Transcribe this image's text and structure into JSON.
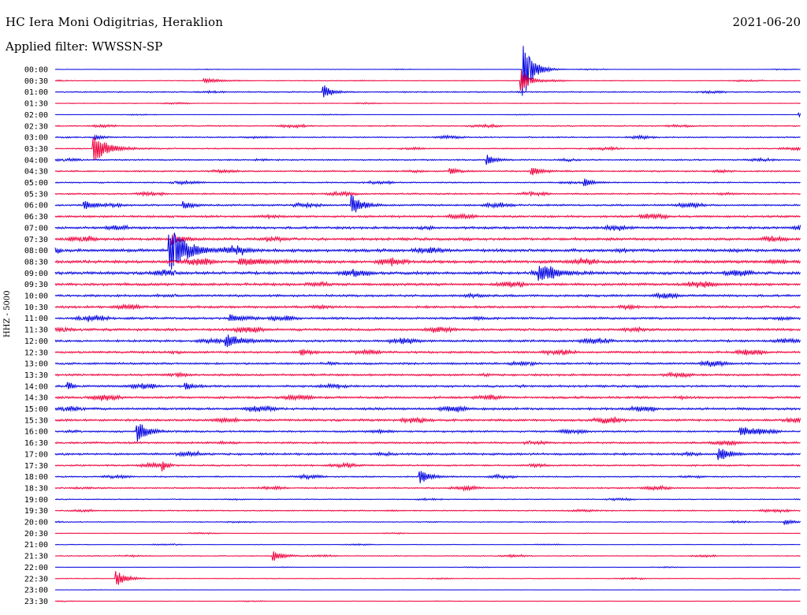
{
  "header": {
    "station": "HC Iera Moni Odigitrias, Heraklion",
    "date": "2021-06-20",
    "filter": "Applied filter: WWSSN-SP"
  },
  "chart_data": {
    "type": "line",
    "ylabel": "HHZ - 5000",
    "colors": {
      "even": "#0000e0",
      "odd": "#f0003c"
    },
    "rows": [
      "00:00",
      "00:30",
      "01:00",
      "01:30",
      "02:00",
      "02:30",
      "03:00",
      "03:30",
      "04:00",
      "04:30",
      "05:00",
      "05:30",
      "06:00",
      "06:30",
      "07:00",
      "07:30",
      "08:00",
      "08:30",
      "09:00",
      "09:30",
      "10:00",
      "10:30",
      "11:00",
      "11:30",
      "12:00",
      "12:30",
      "13:00",
      "13:30",
      "14:00",
      "14:30",
      "15:00",
      "15:30",
      "16:00",
      "16:30",
      "17:00",
      "17:30",
      "18:00",
      "18:30",
      "19:00",
      "19:30",
      "20:00",
      "20:30",
      "21:00",
      "21:30",
      "22:00",
      "22:30",
      "23:00",
      "23:30"
    ],
    "noise": [
      0.3,
      0.5,
      0.8,
      0.5,
      0.3,
      0.8,
      0.8,
      0.8,
      0.9,
      1.0,
      0.9,
      1.0,
      1.2,
      1.4,
      1.6,
      1.7,
      2.0,
      2.0,
      1.9,
      1.7,
      1.5,
      1.5,
      1.5,
      1.6,
      1.5,
      1.4,
      1.4,
      1.4,
      1.4,
      1.5,
      1.6,
      1.5,
      1.2,
      1.3,
      1.4,
      1.1,
      0.9,
      1.0,
      0.6,
      0.8,
      0.6,
      0.4,
      0.4,
      0.6,
      0.3,
      0.5,
      0.2,
      0.3
    ],
    "events": [
      {
        "row": 0,
        "x": 0.628,
        "amp": 38,
        "decay": 0.012
      },
      {
        "row": 1,
        "x": 0.626,
        "amp": 14,
        "decay": 0.01
      },
      {
        "row": 2,
        "x": 0.36,
        "amp": 9,
        "decay": 0.01
      },
      {
        "row": 1,
        "x": 0.2,
        "amp": 3,
        "decay": 0.02
      },
      {
        "row": 7,
        "x": 0.052,
        "amp": 17,
        "decay": 0.018
      },
      {
        "row": 6,
        "x": 0.054,
        "amp": 3,
        "decay": 0.01
      },
      {
        "row": 8,
        "x": 0.58,
        "amp": 6,
        "decay": 0.01
      },
      {
        "row": 9,
        "x": 0.64,
        "amp": 5,
        "decay": 0.012
      },
      {
        "row": 9,
        "x": 0.53,
        "amp": 4,
        "decay": 0.01
      },
      {
        "row": 10,
        "x": 0.71,
        "amp": 5,
        "decay": 0.01
      },
      {
        "row": 12,
        "x": 0.398,
        "amp": 14,
        "decay": 0.012
      },
      {
        "row": 12,
        "x": 0.04,
        "amp": 6,
        "decay": 0.012
      },
      {
        "row": 12,
        "x": 0.172,
        "amp": 5,
        "decay": 0.01
      },
      {
        "row": 16,
        "x": 0.154,
        "amp": 28,
        "decay": 0.022
      },
      {
        "row": 15,
        "x": 0.157,
        "amp": 8,
        "decay": 0.01
      },
      {
        "row": 17,
        "x": 0.247,
        "amp": 5,
        "decay": 0.03
      },
      {
        "row": 18,
        "x": 0.65,
        "amp": 8,
        "decay": 0.022
      },
      {
        "row": 22,
        "x": 0.235,
        "amp": 4,
        "decay": 0.02
      },
      {
        "row": 24,
        "x": 0.23,
        "amp": 8,
        "decay": 0.02
      },
      {
        "row": 25,
        "x": 0.33,
        "amp": 4,
        "decay": 0.01
      },
      {
        "row": 28,
        "x": 0.018,
        "amp": 6,
        "decay": 0.005
      },
      {
        "row": 28,
        "x": 0.175,
        "amp": 4,
        "decay": 0.01
      },
      {
        "row": 32,
        "x": 0.11,
        "amp": 14,
        "decay": 0.012
      },
      {
        "row": 32,
        "x": 0.92,
        "amp": 7,
        "decay": 0.012
      },
      {
        "row": 34,
        "x": 0.89,
        "amp": 10,
        "decay": 0.012
      },
      {
        "row": 35,
        "x": 0.145,
        "amp": 6,
        "decay": 0.005
      },
      {
        "row": 36,
        "x": 0.49,
        "amp": 9,
        "decay": 0.012
      },
      {
        "row": 43,
        "x": 0.293,
        "amp": 7,
        "decay": 0.012
      },
      {
        "row": 45,
        "x": 0.082,
        "amp": 10,
        "decay": 0.012
      },
      {
        "row": 4,
        "x": 0.998,
        "amp": 3,
        "decay": 0.006
      },
      {
        "row": 40,
        "x": 0.98,
        "amp": 3,
        "decay": 0.012
      }
    ]
  }
}
